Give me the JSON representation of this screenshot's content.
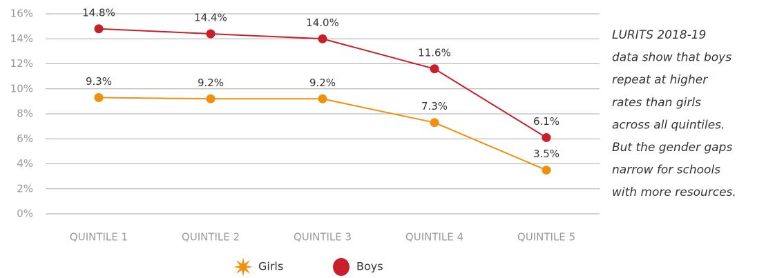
{
  "chart_data": {
    "type": "line",
    "categories": [
      "QUINTILE 1",
      "QUINTILE 2",
      "QUINTILE 3",
      "QUINTILE 4",
      "QUINTILE 5"
    ],
    "series": [
      {
        "name": "Girls",
        "color": "#f0900f",
        "values": [
          9.3,
          9.2,
          9.2,
          7.3,
          3.5
        ],
        "value_labels": [
          "9.3%",
          "9.2%",
          "9.2%",
          "7.3%",
          "3.5%"
        ]
      },
      {
        "name": "Boys",
        "color": "#c8202a",
        "values": [
          14.8,
          14.4,
          14.0,
          11.6,
          6.1
        ],
        "value_labels": [
          "14.8%",
          "14.4%",
          "14.0%",
          "11.6%",
          "6.1%"
        ]
      }
    ],
    "ylim": [
      0,
      16
    ],
    "yticks": [
      {
        "value": 0,
        "label": "0%"
      },
      {
        "value": 2,
        "label": "2%"
      },
      {
        "value": 4,
        "label": "4%"
      },
      {
        "value": 6,
        "label": "6%"
      },
      {
        "value": 8,
        "label": "8%"
      },
      {
        "value": 10,
        "label": "10%"
      },
      {
        "value": 12,
        "label": "12%"
      },
      {
        "value": 14,
        "label": "14%"
      },
      {
        "value": 16,
        "label": "16%"
      }
    ],
    "grid": true,
    "legend": "bottom",
    "annotation": [
      "LURITS 2018-19",
      "data show that boys",
      "repeat at higher",
      "rates than girls",
      "across all quintiles.",
      "But the gender gaps",
      "narrow for schools",
      "with more resources."
    ]
  }
}
